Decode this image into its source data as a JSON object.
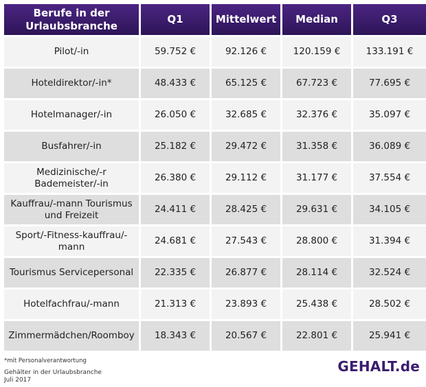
{
  "chart_data": {
    "type": "table",
    "columns": [
      "Berufe in der Urlaubsbranche",
      "Q1",
      "Mittelwert",
      "Median",
      "Q3"
    ],
    "rows": [
      {
        "beruf": "Pilot/-in",
        "q1": "59.752 €",
        "mittelwert": "92.126 €",
        "median": "120.159 €",
        "q3": "133.191 €"
      },
      {
        "beruf": "Hoteldirektor/-in*",
        "q1": "48.433 €",
        "mittelwert": "65.125 €",
        "median": "67.723 €",
        "q3": "77.695 €"
      },
      {
        "beruf": "Hotelmanager/-in",
        "q1": "26.050 €",
        "mittelwert": "32.685 €",
        "median": "32.376 €",
        "q3": "35.097 €"
      },
      {
        "beruf": "Busfahrer/-in",
        "q1": "25.182 €",
        "mittelwert": "29.472 €",
        "median": "31.358 €",
        "q3": "36.089 €"
      },
      {
        "beruf": "Medizinische/-r Bademeister/-in",
        "q1": "26.380 €",
        "mittelwert": "29.112 €",
        "median": "31.177 €",
        "q3": "37.554 €"
      },
      {
        "beruf": "Kauffrau/-mann Tourismus und Freizeit",
        "q1": "24.411 €",
        "mittelwert": "28.425 €",
        "median": "29.631 €",
        "q3": "34.105 €"
      },
      {
        "beruf": "Sport/-Fitness-kauffrau/-mann",
        "q1": "24.681 €",
        "mittelwert": "27.543 €",
        "median": "28.800 €",
        "q3": "31.394 €"
      },
      {
        "beruf": "Tourismus Servicepersonal",
        "q1": "22.335 €",
        "mittelwert": "26.877 €",
        "median": "28.114 €",
        "q3": "32.524 €"
      },
      {
        "beruf": "Hotelfachfrau/-mann",
        "q1": "21.313 €",
        "mittelwert": "23.893 €",
        "median": "25.438 €",
        "q3": "28.502 €"
      },
      {
        "beruf": "Zimmermädchen/Roomboy",
        "q1": "18.343 €",
        "mittelwert": "20.567 €",
        "median": "22.801 €",
        "q3": "25.941 €"
      }
    ]
  },
  "footnote": "*mit Personalverantwortung",
  "source_title": "Gehälter in der Urlaubsbranche",
  "source_date": "Juli 2017",
  "brand": "GEHALT.de",
  "colors": {
    "header_bg": "#3a1c6e",
    "row_light": "#f3f3f3",
    "row_dark": "#dedede",
    "brand": "#3a1c6e"
  }
}
